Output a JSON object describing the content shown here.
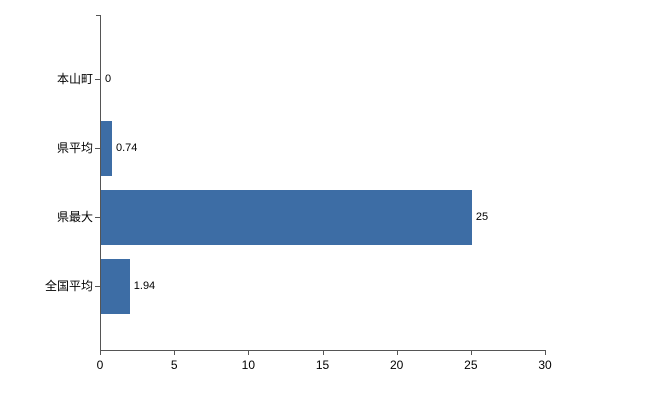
{
  "chart_data": {
    "type": "bar",
    "orientation": "horizontal",
    "title": "",
    "xlabel": "",
    "ylabel": "",
    "categories": [
      "本山町",
      "県平均",
      "県最大",
      "全国平均"
    ],
    "values": [
      0,
      0.74,
      25,
      1.94
    ],
    "value_labels": [
      "0",
      "0.74",
      "25",
      "1.94"
    ],
    "xlim": [
      0,
      30
    ],
    "xticks": [
      0,
      5,
      10,
      15,
      20,
      25,
      30
    ],
    "grid": false,
    "legend": "none",
    "bar_color": "#3d6da5",
    "axis_color": "#555555",
    "background_color": "#ffffff"
  }
}
